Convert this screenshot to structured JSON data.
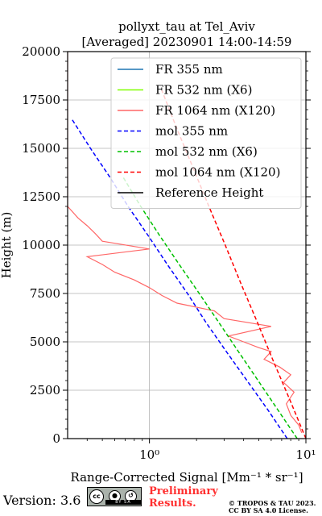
{
  "chart_data": {
    "type": "line",
    "title": "pollyxt_tau at Tel_Aviv",
    "subtitle": "[Averaged] 20230901 14:00-14:59",
    "xlabel": "Range-Corrected Signal [Mm⁻¹ * sr⁻¹]",
    "ylabel": "Height (m)",
    "xscale": "log",
    "xlim": [
      0.3,
      10
    ],
    "ylim": [
      0,
      20000
    ],
    "x_ticks": [
      1,
      10
    ],
    "x_tick_labels": [
      "10⁰",
      "10¹"
    ],
    "y_ticks": [
      0,
      2500,
      5000,
      7500,
      10000,
      12500,
      15000,
      17500,
      20000
    ],
    "y_tick_labels": [
      "0",
      "2500",
      "5000",
      "7500",
      "10000",
      "12500",
      "15000",
      "17500",
      "20000"
    ],
    "grid": true,
    "legend_position": "top-right",
    "series": [
      {
        "name": "FR 355 nm",
        "color": "#1f77b4",
        "style": "solid",
        "x": [],
        "y": []
      },
      {
        "name": "FR 532 nm (X6)",
        "color": "#80ff00",
        "style": "solid",
        "x": [],
        "y": []
      },
      {
        "name": "FR 1064 nm (X120)",
        "color": "#ff6666",
        "style": "solid",
        "x": [
          9.4,
          9.0,
          8.0,
          7.5,
          8.4,
          7.2,
          8.0,
          6.8,
          5.4,
          6.0,
          5.0,
          4.0,
          3.2,
          6.0,
          3.0,
          2.6,
          1.5,
          1.2,
          1.0,
          0.8,
          0.6,
          0.5,
          0.4,
          1.0,
          0.5,
          0.45,
          0.4,
          0.35,
          0.3,
          0.3,
          0.3,
          0.3,
          0.3,
          0.3,
          0.3,
          0.3,
          0.3,
          0.3,
          0.3
        ],
        "y": [
          300,
          700,
          1200,
          1800,
          2400,
          2900,
          3300,
          3700,
          4100,
          4500,
          4700,
          5000,
          5300,
          5800,
          6200,
          6600,
          7000,
          7400,
          7800,
          8200,
          8600,
          9000,
          9400,
          9800,
          10200,
          10600,
          11000,
          11400,
          12000,
          12600,
          13300,
          14000,
          14800,
          15600,
          16400,
          17200,
          18000,
          19000,
          20000
        ]
      },
      {
        "name": "mol 355 nm",
        "color": "#0000ff",
        "style": "dashed",
        "x": [
          7.6,
          5.7,
          4.2,
          3.1,
          2.3,
          1.75,
          1.3,
          0.98,
          0.73,
          0.56,
          0.42,
          0.32
        ],
        "y": [
          0,
          1500,
          3000,
          4500,
          6000,
          7500,
          9000,
          10500,
          12000,
          13500,
          15000,
          16500
        ]
      },
      {
        "name": "mol 532 nm (X6)",
        "color": "#00c000",
        "style": "dashed",
        "x": [
          8.8,
          6.6,
          4.95,
          3.7,
          2.78,
          2.08,
          1.55,
          1.16,
          0.88,
          0.68
        ],
        "y": [
          0,
          1500,
          3000,
          4500,
          6000,
          7500,
          9000,
          10500,
          12000,
          13500
        ]
      },
      {
        "name": "mol 1064 nm (X120)",
        "color": "#ff0000",
        "style": "dashed",
        "x": [
          10.0,
          7.9,
          6.2,
          4.9,
          3.85,
          3.05,
          2.4,
          1.9,
          1.5,
          1.2
        ],
        "y": [
          0,
          2000,
          4000,
          6000,
          8000,
          10000,
          12000,
          14000,
          16000,
          18000
        ]
      },
      {
        "name": "Reference Height",
        "color": "#000000",
        "style": "solid",
        "x": [],
        "y": []
      }
    ]
  },
  "footer": {
    "version": "Version: 3.6",
    "cc_letters": "cc",
    "cc_strip": "BY  SA",
    "preliminary_line1": "Preliminary",
    "preliminary_line2": "Results.",
    "copyright_line1": "© TROPOS & TAU 2023.",
    "copyright_line2": "CC BY SA 4.0 License."
  }
}
